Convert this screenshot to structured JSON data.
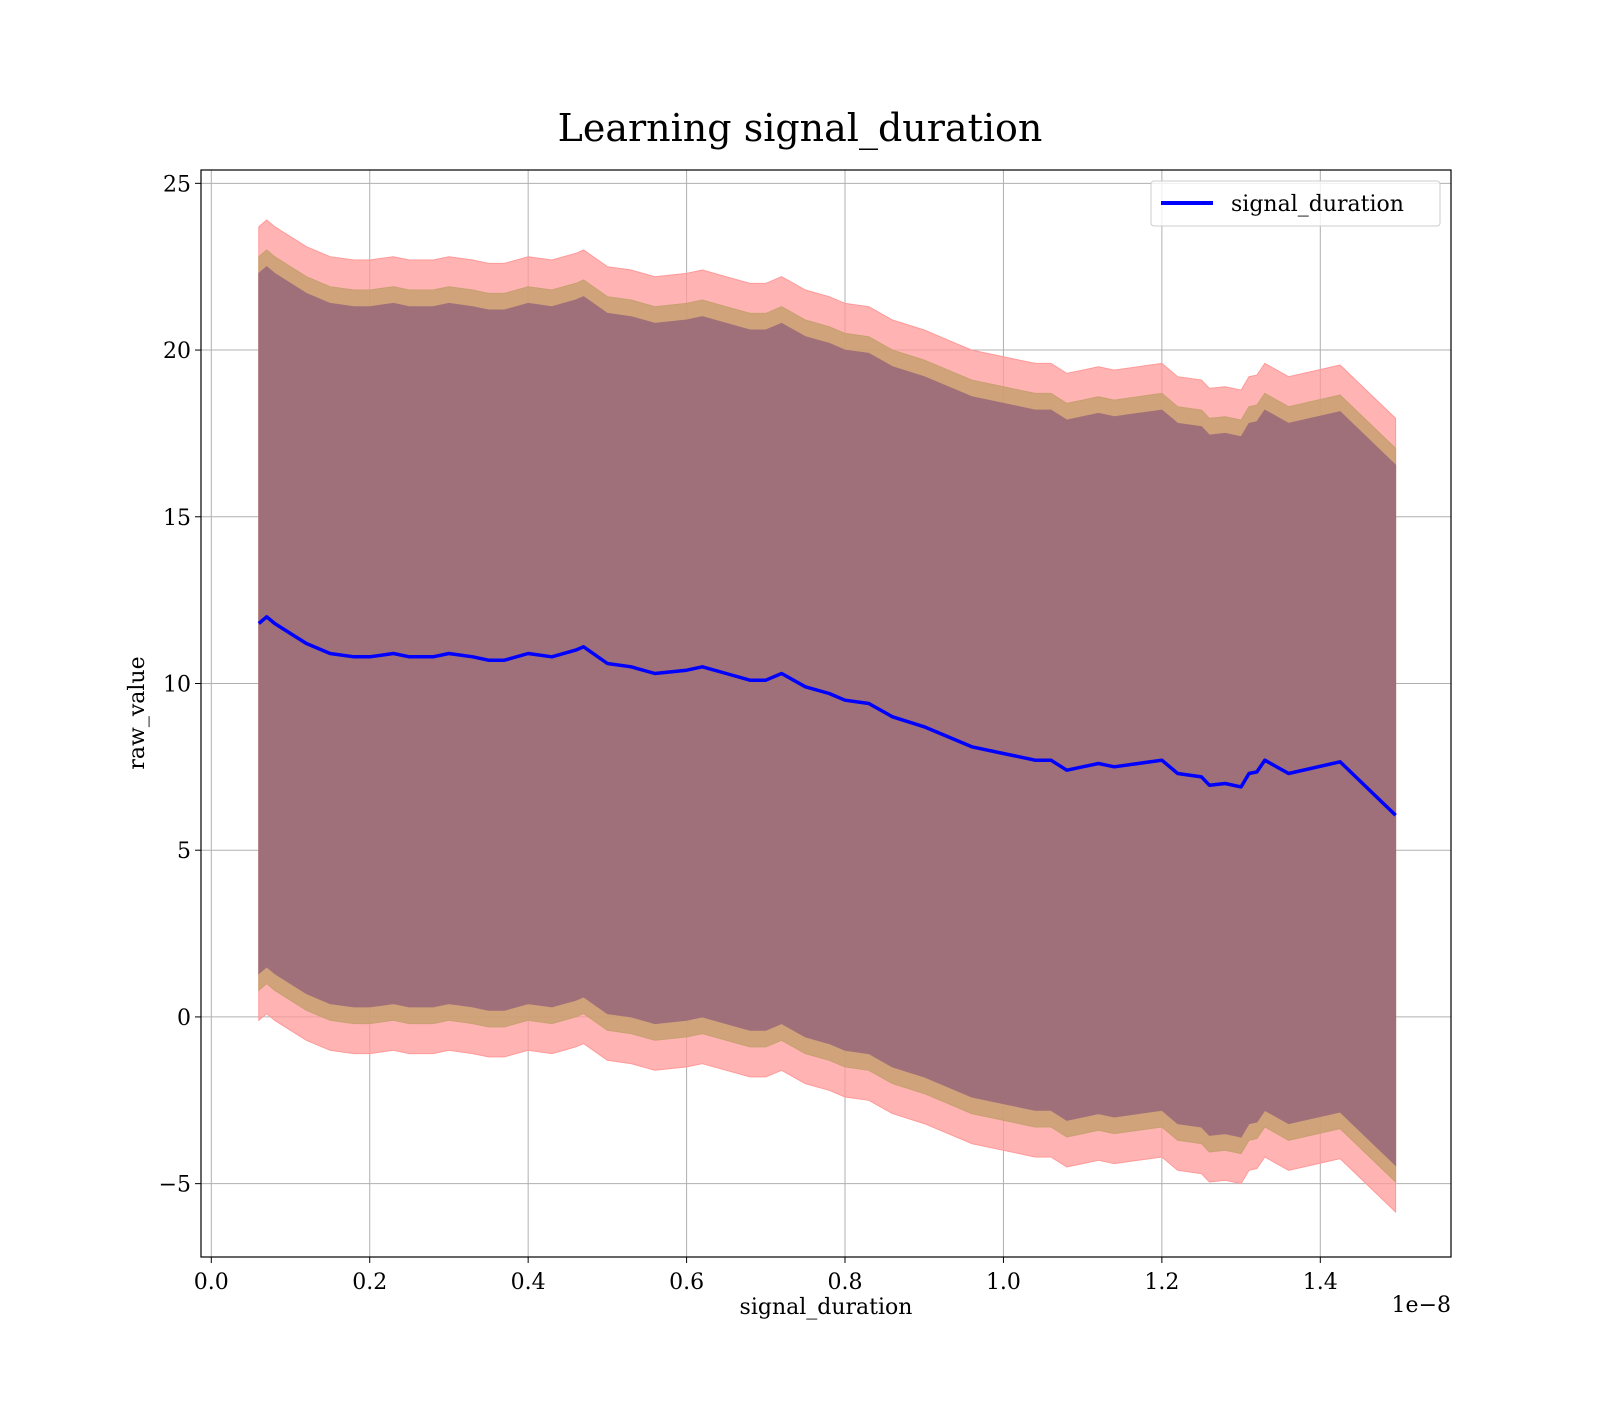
{
  "chart_data": {
    "type": "line",
    "title": "Learning signal_duration",
    "xlabel": "signal_duration",
    "ylabel": "raw_value",
    "x_offset_text": "1e−8",
    "xlim": [
      -0.013,
      1.565
    ],
    "ylim": [
      -7.2,
      25.4
    ],
    "x_ticks": [
      0.0,
      0.2,
      0.4,
      0.6,
      0.8,
      1.0,
      1.2,
      1.4
    ],
    "x_tick_labels": [
      "0.0",
      "0.2",
      "0.4",
      "0.6",
      "0.8",
      "1.0",
      "1.2",
      "1.4"
    ],
    "y_ticks": [
      -5,
      0,
      5,
      10,
      15,
      20,
      25
    ],
    "y_tick_labels": [
      "−5",
      "0",
      "5",
      "10",
      "15",
      "20",
      "25"
    ],
    "grid": true,
    "legend_position": "top-right",
    "colors": {
      "line": "#0000ff",
      "band_outer": "#ff9999",
      "band_middle": "#c8a070",
      "band_inner": "#a0707a"
    },
    "series": [
      {
        "name": "signal_duration",
        "x": [
          0.06,
          0.07,
          0.08,
          0.1,
          0.12,
          0.15,
          0.18,
          0.2,
          0.23,
          0.25,
          0.28,
          0.3,
          0.33,
          0.35,
          0.37,
          0.4,
          0.43,
          0.46,
          0.47,
          0.5,
          0.53,
          0.56,
          0.6,
          0.62,
          0.65,
          0.68,
          0.7,
          0.72,
          0.75,
          0.78,
          0.8,
          0.83,
          0.86,
          0.9,
          0.93,
          0.96,
          1.0,
          1.02,
          1.04,
          1.06,
          1.08,
          1.1,
          1.12,
          1.14,
          1.17,
          1.2,
          1.22,
          1.25,
          1.26,
          1.28,
          1.3,
          1.31,
          1.32,
          1.33,
          1.36,
          1.425,
          1.495
        ],
        "values": [
          11.8,
          12.0,
          11.8,
          11.5,
          11.2,
          10.9,
          10.8,
          10.8,
          10.9,
          10.8,
          10.8,
          10.9,
          10.8,
          10.7,
          10.7,
          10.9,
          10.8,
          11.0,
          11.1,
          10.6,
          10.5,
          10.3,
          10.4,
          10.5,
          10.3,
          10.1,
          10.1,
          10.3,
          9.9,
          9.7,
          9.5,
          9.4,
          9.0,
          8.7,
          8.4,
          8.1,
          7.9,
          7.8,
          7.7,
          7.7,
          7.4,
          7.5,
          7.6,
          7.5,
          7.6,
          7.7,
          7.3,
          7.2,
          6.95,
          7.0,
          6.9,
          7.3,
          7.35,
          7.7,
          7.3,
          7.65,
          6.05
        ],
        "bands": [
          {
            "name": "outer",
            "upper_offset": 11.9,
            "lower_offset": 11.9
          },
          {
            "name": "middle",
            "upper_offset": 11.0,
            "lower_offset": 11.0
          },
          {
            "name": "inner",
            "upper_offset": 10.5,
            "lower_offset": 10.5
          }
        ]
      }
    ]
  }
}
